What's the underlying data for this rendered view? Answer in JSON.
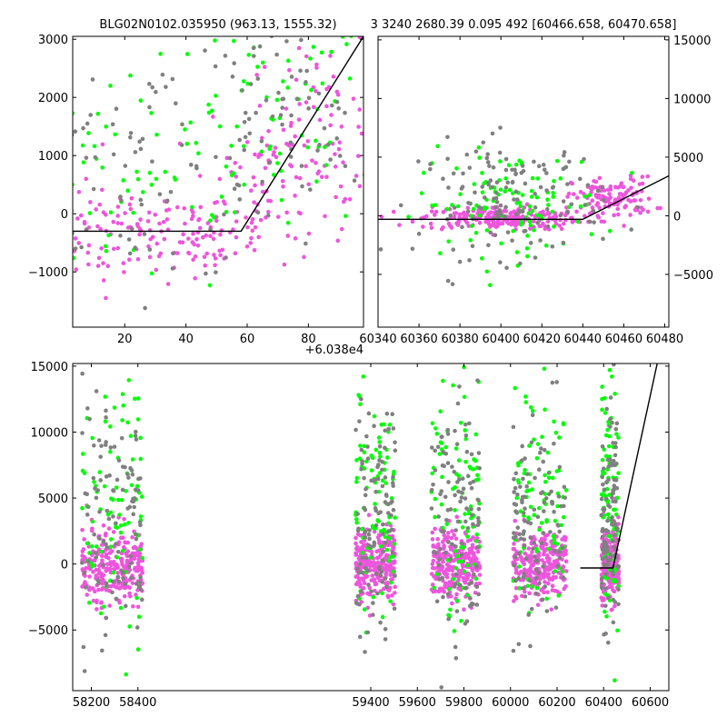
{
  "title_left": "BLG02N0102.035950 (963.13, 1555.32)",
  "title_right": "3 3240 2680.39 0.095 492 [60466.658, 60470.658]",
  "colors": {
    "magenta": "#ee55dd",
    "green": "#00ff00",
    "gray": "#808080",
    "model": "#000000"
  },
  "chart_data": [
    {
      "panel": "top-left",
      "type": "scatter",
      "xlim": [
        3,
        98
      ],
      "ylim": [
        -1950,
        3050
      ],
      "xticks": [
        20,
        40,
        60,
        80
      ],
      "yticks": [
        -1000,
        0,
        1000,
        2000,
        3000
      ],
      "yticklabels": [
        "−1000",
        "0",
        "1000",
        "2000",
        "3000"
      ],
      "offset_label": "+6.038e4",
      "model_line": [
        [
          3,
          -300
        ],
        [
          58,
          -300
        ],
        [
          98,
          3050
        ]
      ],
      "series": [
        {
          "color": "magenta",
          "clusters": [
            [
              20,
              -400,
              40,
              400,
              110
            ],
            [
              45,
              -300,
              30,
              350,
              60
            ],
            [
              65,
              500,
              30,
              600,
              60
            ],
            [
              85,
              1500,
              25,
              700,
              80
            ]
          ]
        },
        {
          "color": "green",
          "clusters": [
            [
              25,
              600,
              50,
              1100,
              70
            ],
            [
              70,
              1500,
              30,
              1000,
              60
            ]
          ]
        },
        {
          "color": "gray",
          "clusters": [
            [
              25,
              800,
              50,
              1000,
              90
            ],
            [
              70,
              1500,
              30,
              900,
              70
            ]
          ]
        }
      ]
    },
    {
      "panel": "top-right",
      "type": "scatter",
      "xlim": [
        60340,
        60482
      ],
      "ylim": [
        -9500,
        15300
      ],
      "xticks": [
        60340,
        60360,
        60380,
        60400,
        60420,
        60440,
        60460,
        60480
      ],
      "yticks": [
        -5000,
        0,
        5000,
        10000,
        15000
      ],
      "yticklabels": [
        "−5000",
        "0",
        "5000",
        "10000",
        "15000"
      ],
      "model_line": [
        [
          60340,
          -300
        ],
        [
          60440,
          -300
        ],
        [
          60482,
          3400
        ]
      ],
      "series": [
        {
          "color": "magenta",
          "clusters": [
            [
              60400,
              -200,
              40,
              500,
              220
            ],
            [
              60455,
              1500,
              20,
              900,
              120
            ]
          ]
        },
        {
          "color": "green",
          "clusters": [
            [
              60405,
              1000,
              45,
              2200,
              110
            ]
          ]
        },
        {
          "color": "gray",
          "clusters": [
            [
              60405,
              1500,
              45,
              2500,
              140
            ]
          ]
        }
      ]
    },
    {
      "panel": "bottom",
      "type": "scatter",
      "xlim": [
        58120,
        60680
      ],
      "ylim": [
        -9600,
        15200
      ],
      "xticks": [
        58200,
        58400,
        59400,
        59600,
        59800,
        60000,
        60200,
        60400,
        60600
      ],
      "yticks": [
        -5000,
        0,
        5000,
        10000,
        15000
      ],
      "yticklabels": [
        "−5000",
        "0",
        "5000",
        "10000",
        "15000"
      ],
      "model_line": [
        [
          60300,
          -300
        ],
        [
          60440,
          -300
        ],
        [
          60630,
          15200
        ]
      ],
      "seasons": [
        [
          58160,
          58420
        ],
        [
          59335,
          59505
        ],
        [
          59660,
          59870
        ],
        [
          60010,
          60240
        ],
        [
          60390,
          60465
        ]
      ],
      "series": [
        {
          "color": "magenta",
          "per_season": 260,
          "center": 0,
          "spread": 1300
        },
        {
          "color": "green",
          "per_season": 90,
          "center": 5000,
          "spread": 4500
        },
        {
          "color": "gray",
          "per_season": 110,
          "center": 3500,
          "spread": 4500
        }
      ]
    }
  ]
}
